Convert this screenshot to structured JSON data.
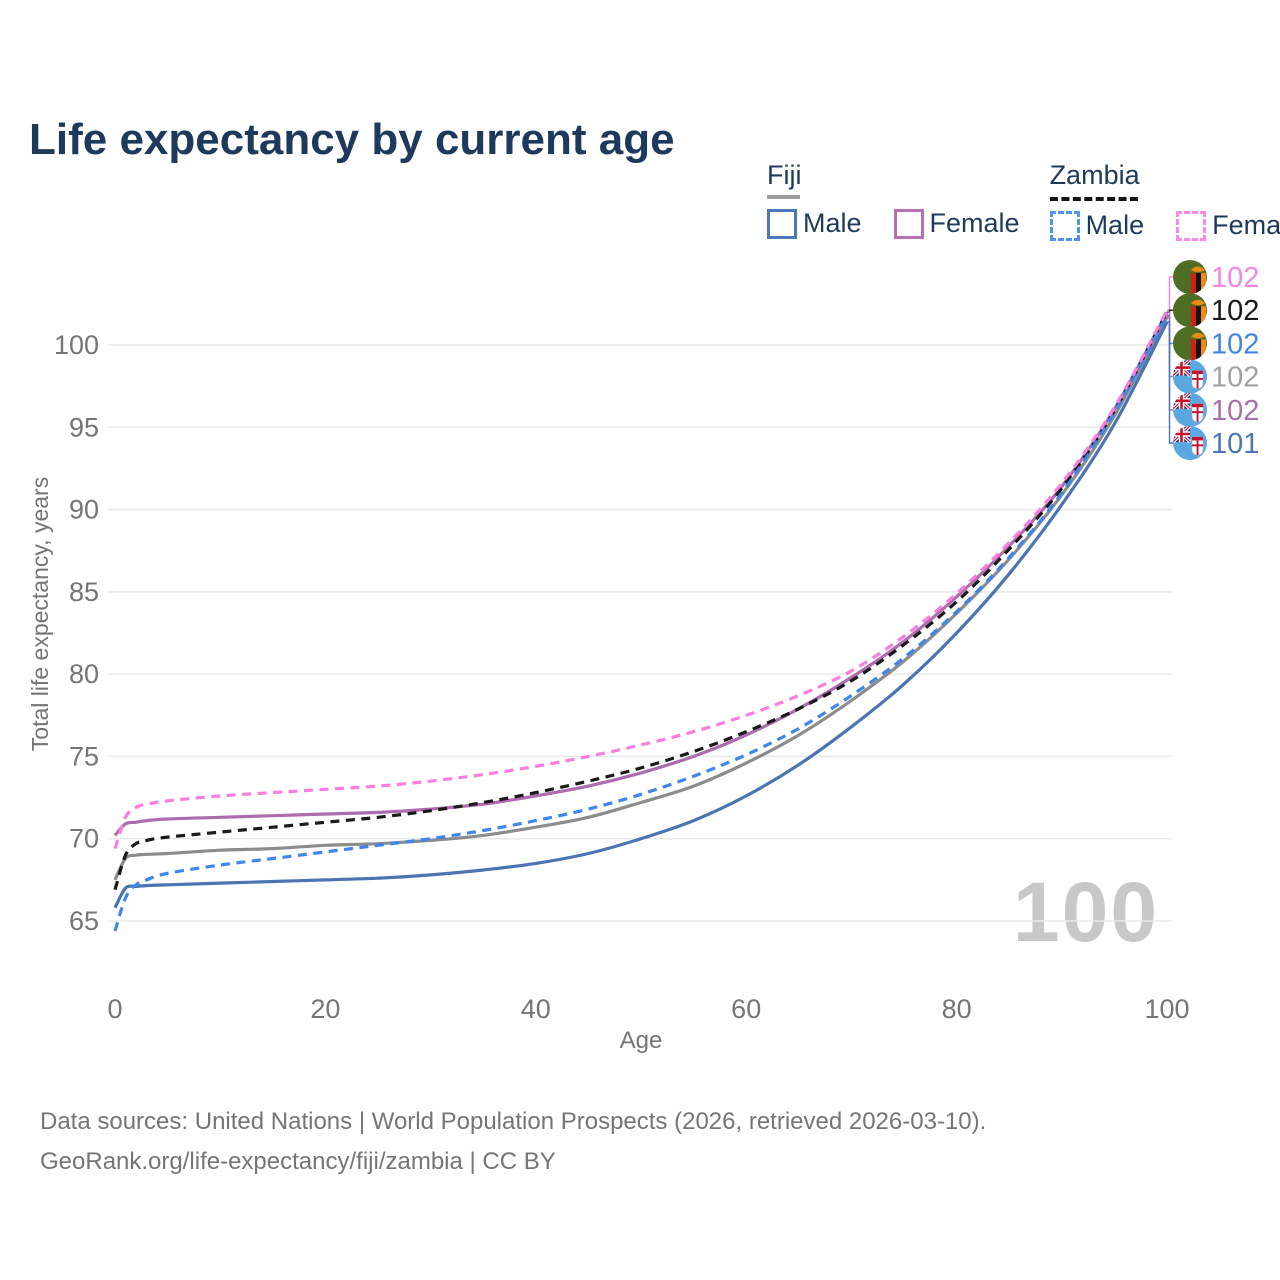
{
  "header": {
    "title": "Life expectancy by current age"
  },
  "legend": {
    "groups": [
      {
        "label": "Fiji",
        "line_style": "solid",
        "underline_color": "#9e9e9e",
        "items": [
          {
            "label": "Male",
            "color": "#4878b8"
          },
          {
            "label": "Female",
            "color": "#b671b6"
          }
        ]
      },
      {
        "label": "Zambia",
        "line_style": "dashed",
        "underline_color": "#151515",
        "items": [
          {
            "label": "Male",
            "color": "#4d96ef"
          },
          {
            "label": "Female",
            "color": "#fb8ae4"
          }
        ]
      }
    ]
  },
  "chart_data": {
    "type": "line",
    "title": "Life expectancy by current age",
    "xlabel": "Age",
    "ylabel": "Total life expectancy, years",
    "xlim": [
      0,
      100
    ],
    "ylim": [
      63.5,
      103.5
    ],
    "xticks": [
      0,
      20,
      40,
      60,
      80,
      100
    ],
    "yticks": [
      65,
      70,
      75,
      80,
      85,
      90,
      95,
      100
    ],
    "grid": "horizontal",
    "legend_position": "top-right",
    "watermark": "100",
    "x": [
      0,
      1,
      2,
      3,
      5,
      10,
      15,
      20,
      25,
      30,
      35,
      40,
      45,
      50,
      55,
      60,
      65,
      70,
      75,
      80,
      85,
      90,
      95,
      100
    ],
    "series": [
      {
        "id": "fiji-both",
        "name": "Fiji",
        "country": "Fiji",
        "sex": "Both",
        "color": "#8c8c8c",
        "dash": "solid",
        "values": [
          67.5,
          68.8,
          69.0,
          69.05,
          69.1,
          69.3,
          69.4,
          69.6,
          69.7,
          69.9,
          70.2,
          70.7,
          71.3,
          72.2,
          73.2,
          74.6,
          76.3,
          78.4,
          80.8,
          83.7,
          87.0,
          90.9,
          95.7,
          101.7
        ]
      },
      {
        "id": "fiji-female",
        "name": "Fiji Female",
        "country": "Fiji",
        "sex": "Female",
        "color": "#ad6cad",
        "dash": "solid",
        "values": [
          70.2,
          70.9,
          71.0,
          71.1,
          71.2,
          71.3,
          71.4,
          71.5,
          71.6,
          71.8,
          72.1,
          72.6,
          73.2,
          74.0,
          75.0,
          76.3,
          77.9,
          79.8,
          82.0,
          84.7,
          87.8,
          91.4,
          96.1,
          102.0
        ]
      },
      {
        "id": "fiji-male",
        "name": "Fiji Male",
        "country": "Fiji",
        "sex": "Male",
        "color": "#4b74b2",
        "dash": "solid",
        "values": [
          65.8,
          67.0,
          67.1,
          67.15,
          67.2,
          67.3,
          67.4,
          67.5,
          67.6,
          67.8,
          68.1,
          68.5,
          69.1,
          70.0,
          71.1,
          72.6,
          74.5,
          76.8,
          79.4,
          82.5,
          86.1,
          90.3,
          95.2,
          101.4
        ]
      },
      {
        "id": "zambia-both",
        "name": "Zambia",
        "country": "Zambia",
        "sex": "Both",
        "color": "#1a1a1a",
        "dash": "dashed",
        "values": [
          66.9,
          69.0,
          69.7,
          69.9,
          70.1,
          70.4,
          70.7,
          71.0,
          71.3,
          71.7,
          72.2,
          72.8,
          73.5,
          74.3,
          75.3,
          76.5,
          77.9,
          79.6,
          81.8,
          84.4,
          87.6,
          91.3,
          96.0,
          102.0
        ]
      },
      {
        "id": "zambia-male",
        "name": "Zambia Male",
        "country": "Zambia",
        "sex": "Male",
        "color": "#3e86ea",
        "dash": "dashed",
        "values": [
          64.4,
          66.4,
          67.2,
          67.5,
          67.9,
          68.4,
          68.8,
          69.2,
          69.6,
          70.0,
          70.5,
          71.1,
          71.8,
          72.7,
          73.8,
          75.1,
          76.7,
          78.7,
          81.0,
          83.8,
          87.1,
          91.0,
          95.9,
          101.8
        ]
      },
      {
        "id": "zambia-female",
        "name": "Zambia Female",
        "country": "Zambia",
        "sex": "Female",
        "color": "#fa7ee1",
        "dash": "dashed",
        "values": [
          69.4,
          71.3,
          71.9,
          72.1,
          72.3,
          72.6,
          72.8,
          73.0,
          73.2,
          73.5,
          73.9,
          74.4,
          75.0,
          75.7,
          76.5,
          77.5,
          78.7,
          80.2,
          82.3,
          84.9,
          88.0,
          91.6,
          96.2,
          102.1
        ]
      }
    ],
    "end_labels": [
      {
        "series": "zambia-female",
        "label": "102",
        "color": "#f884e6",
        "flag": "zambia"
      },
      {
        "series": "zambia-both",
        "label": "102",
        "color": "#1a1a1a",
        "flag": "zambia"
      },
      {
        "series": "zambia-male",
        "label": "102",
        "color": "#4285e8",
        "flag": "zambia"
      },
      {
        "series": "fiji-both",
        "label": "102",
        "color": "#a2a2a2",
        "flag": "fiji"
      },
      {
        "series": "fiji-female",
        "label": "102",
        "color": "#a871ab",
        "flag": "fiji"
      },
      {
        "series": "fiji-male",
        "label": "101",
        "color": "#4a77b4",
        "flag": "fiji"
      }
    ]
  },
  "footer": {
    "line1": "Data sources: United Nations | World Population Prospects (2026, retrieved 2026-03-10).",
    "line2": "GeoRank.org/life-expectancy/fiji/zambia | CC BY"
  }
}
